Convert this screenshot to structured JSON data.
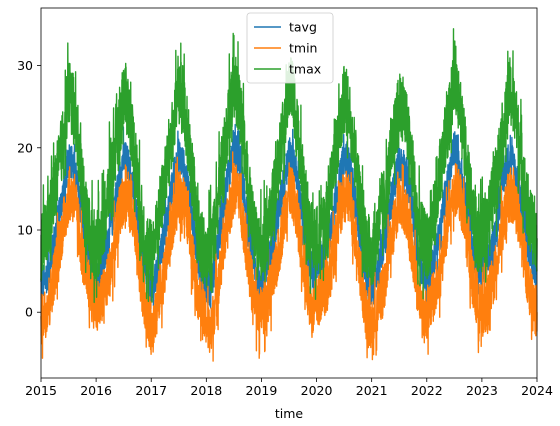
{
  "chart_data": {
    "type": "line",
    "title": "",
    "xlabel": "time",
    "ylabel": "",
    "xlim": [
      2015,
      2024
    ],
    "ylim": [
      -8,
      37
    ],
    "x_ticks": [
      {
        "value": 2015,
        "label": "2015"
      },
      {
        "value": 2016,
        "label": "2016"
      },
      {
        "value": 2017,
        "label": "2017"
      },
      {
        "value": 2018,
        "label": "2018"
      },
      {
        "value": 2019,
        "label": "2019"
      },
      {
        "value": 2020,
        "label": "2020"
      },
      {
        "value": 2021,
        "label": "2021"
      },
      {
        "value": 2022,
        "label": "2022"
      },
      {
        "value": 2023,
        "label": "2023"
      },
      {
        "value": 2024,
        "label": "2024"
      }
    ],
    "y_ticks": [
      {
        "value": 0,
        "label": "0"
      },
      {
        "value": 10,
        "label": "10"
      },
      {
        "value": 20,
        "label": "20"
      },
      {
        "value": 30,
        "label": "30"
      }
    ],
    "grid": false,
    "legend": {
      "placement": "top-center",
      "entries": [
        "tavg",
        "tmin",
        "tmax"
      ]
    },
    "x": [
      2015.0,
      2015.08,
      2015.17,
      2015.25,
      2015.33,
      2015.42,
      2015.5,
      2015.58,
      2015.67,
      2015.75,
      2015.83,
      2015.92,
      2016.0,
      2016.08,
      2016.17,
      2016.25,
      2016.33,
      2016.42,
      2016.5,
      2016.58,
      2016.67,
      2016.75,
      2016.83,
      2016.92,
      2017.0,
      2017.08,
      2017.17,
      2017.25,
      2017.33,
      2017.42,
      2017.5,
      2017.58,
      2017.67,
      2017.75,
      2017.83,
      2017.92,
      2018.0,
      2018.08,
      2018.17,
      2018.25,
      2018.33,
      2018.42,
      2018.5,
      2018.58,
      2018.67,
      2018.75,
      2018.83,
      2018.92,
      2019.0,
      2019.08,
      2019.17,
      2019.25,
      2019.33,
      2019.42,
      2019.5,
      2019.58,
      2019.67,
      2019.75,
      2019.83,
      2019.92,
      2020.0,
      2020.08,
      2020.17,
      2020.25,
      2020.33,
      2020.42,
      2020.5,
      2020.58,
      2020.67,
      2020.75,
      2020.83,
      2020.92,
      2021.0,
      2021.08,
      2021.17,
      2021.25,
      2021.33,
      2021.42,
      2021.5,
      2021.58,
      2021.67,
      2021.75,
      2021.83,
      2021.92,
      2022.0,
      2022.08,
      2022.17,
      2022.25,
      2022.33,
      2022.42,
      2022.5,
      2022.58,
      2022.67,
      2022.75,
      2022.83,
      2022.92,
      2023.0,
      2023.08,
      2023.17,
      2023.25,
      2023.33,
      2023.42,
      2023.5,
      2023.58,
      2023.67,
      2023.75,
      2023.83,
      2023.92,
      2024.0
    ],
    "series": [
      {
        "name": "tavg",
        "color": "#1f77b4",
        "values": [
          3,
          4,
          6,
          9,
          12,
          15,
          19,
          18,
          15,
          11,
          7,
          5,
          4,
          5,
          7,
          10,
          13,
          16,
          19,
          18,
          15,
          11,
          7,
          4,
          2,
          4,
          7,
          10,
          13,
          17,
          19,
          18,
          15,
          11,
          7,
          4,
          3,
          3,
          6,
          10,
          14,
          17,
          20,
          19,
          15,
          11,
          7,
          4,
          4,
          5,
          7,
          10,
          13,
          17,
          19,
          19,
          15,
          11,
          7,
          5,
          5,
          6,
          7,
          10,
          13,
          16,
          19,
          18,
          15,
          11,
          7,
          4,
          3,
          5,
          7,
          9,
          12,
          16,
          18,
          18,
          15,
          12,
          7,
          5,
          4,
          5,
          8,
          10,
          14,
          17,
          20,
          19,
          15,
          12,
          8,
          5,
          5,
          6,
          7,
          10,
          14,
          17,
          19,
          18,
          15,
          12,
          8,
          6,
          5
        ]
      },
      {
        "name": "tmin",
        "color": "#ff7f0e",
        "values": [
          -1,
          0,
          2,
          5,
          8,
          11,
          14,
          14,
          11,
          7,
          4,
          2,
          1,
          1,
          3,
          5,
          8,
          12,
          14,
          14,
          11,
          7,
          3,
          0,
          -2,
          0,
          3,
          5,
          9,
          12,
          14,
          14,
          11,
          7,
          3,
          0,
          -1,
          -3,
          2,
          5,
          9,
          12,
          15,
          15,
          11,
          7,
          3,
          0,
          0,
          1,
          3,
          5,
          8,
          12,
          15,
          14,
          11,
          7,
          3,
          0,
          1,
          2,
          3,
          5,
          8,
          12,
          14,
          14,
          11,
          7,
          3,
          -1,
          -2,
          0,
          2,
          4,
          8,
          11,
          14,
          13,
          11,
          7,
          3,
          0,
          0,
          1,
          3,
          5,
          9,
          12,
          15,
          15,
          11,
          8,
          4,
          1,
          0,
          1,
          3,
          5,
          9,
          12,
          14,
          14,
          11,
          8,
          4,
          1,
          0
        ]
      },
      {
        "name": "tmax",
        "color": "#2ca02c",
        "values": [
          8,
          9,
          12,
          15,
          18,
          22,
          27,
          25,
          21,
          16,
          11,
          9,
          8,
          9,
          12,
          16,
          19,
          22,
          27,
          25,
          21,
          16,
          11,
          8,
          7,
          9,
          13,
          16,
          20,
          23,
          27,
          26,
          21,
          16,
          11,
          8,
          7,
          8,
          11,
          16,
          20,
          24,
          28,
          26,
          21,
          16,
          11,
          8,
          8,
          9,
          12,
          15,
          19,
          23,
          28,
          26,
          21,
          16,
          11,
          9,
          9,
          10,
          12,
          15,
          19,
          22,
          26,
          25,
          21,
          16,
          11,
          8,
          7,
          9,
          12,
          14,
          18,
          22,
          25,
          25,
          21,
          17,
          11,
          9,
          8,
          10,
          13,
          16,
          21,
          24,
          29,
          27,
          21,
          17,
          12,
          9,
          9,
          11,
          13,
          16,
          20,
          23,
          27,
          25,
          21,
          17,
          12,
          10,
          9
        ]
      }
    ]
  }
}
